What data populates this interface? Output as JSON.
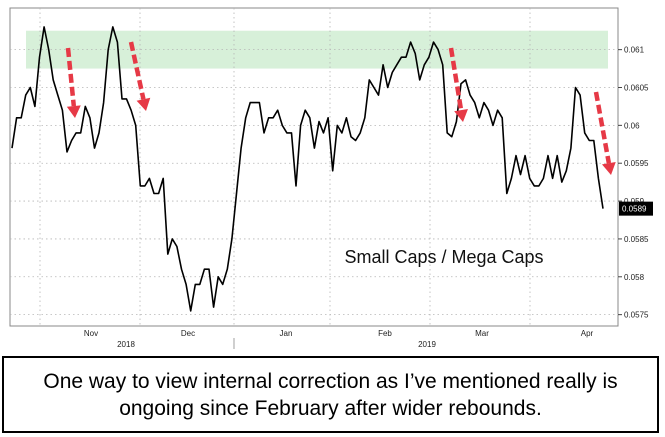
{
  "caption": "One way to view internal correction as I’ve mentioned really is ongoing since February after wider rebounds.",
  "chart_data": {
    "type": "line",
    "title": "Small Caps / Mega Caps",
    "xlabel": "",
    "ylabel": "",
    "series": [
      {
        "values": [
          0.0597,
          0.0601,
          0.0601,
          0.0604,
          0.0605,
          0.06025,
          0.0609,
          0.0613,
          0.061,
          0.0606,
          0.0604,
          0.0602,
          0.05965,
          0.0598,
          0.0599,
          0.0599,
          0.06025,
          0.0601,
          0.0597,
          0.0599,
          0.0603,
          0.061,
          0.0613,
          0.0611,
          0.06035,
          0.06035,
          0.0602,
          0.06,
          0.0592,
          0.0592,
          0.0593,
          0.0591,
          0.0591,
          0.0593,
          0.0583,
          0.0585,
          0.0584,
          0.0581,
          0.0579,
          0.05755,
          0.0579,
          0.0579,
          0.0581,
          0.0581,
          0.0576,
          0.058,
          0.0579,
          0.0581,
          0.0585,
          0.0591,
          0.0597,
          0.0601,
          0.0603,
          0.0603,
          0.0603,
          0.0599,
          0.0601,
          0.0601,
          0.0602,
          0.06,
          0.0599,
          0.0599,
          0.0592,
          0.06,
          0.0602,
          0.0601,
          0.0597,
          0.06005,
          0.0599,
          0.0601,
          0.0594,
          0.06,
          0.0599,
          0.0601,
          0.05985,
          0.0598,
          0.0599,
          0.0601,
          0.0606,
          0.0605,
          0.0604,
          0.0608,
          0.0605,
          0.0607,
          0.0608,
          0.0609,
          0.0609,
          0.0611,
          0.06095,
          0.0606,
          0.0608,
          0.0609,
          0.0611,
          0.061,
          0.0608,
          0.0599,
          0.05985,
          0.06005,
          0.06055,
          0.0606,
          0.0604,
          0.0603,
          0.0601,
          0.0603,
          0.0602,
          0.06,
          0.0602,
          0.0601,
          0.0591,
          0.0593,
          0.0596,
          0.05935,
          0.0596,
          0.0593,
          0.0592,
          0.0592,
          0.0593,
          0.0596,
          0.0593,
          0.0596,
          0.05925,
          0.0594,
          0.0597,
          0.0605,
          0.0604,
          0.0599,
          0.0598,
          0.0598,
          0.0593,
          0.0589
        ]
      }
    ],
    "x_ticks": [
      "Nov",
      "Dec",
      "Jan",
      "Feb",
      "Mar",
      "Apr"
    ],
    "year_labels": [
      "2018",
      "2019"
    ],
    "y_ticks": [
      "0.0575",
      "0.058",
      "0.0585",
      "0.059",
      "0.0595",
      "0.06",
      "0.0605",
      "0.061"
    ],
    "ylim": [
      0.05735,
      0.06155
    ],
    "last_value_label": "0.0589",
    "highlight_band": [
      0.06075,
      0.06125
    ],
    "grid": true,
    "colors": {
      "line": "#000000",
      "band": "#d7f0d9",
      "arrow": "#e63946",
      "last_box": "#000000"
    },
    "annotations": [
      "down-arrow",
      "down-arrow",
      "down-arrow",
      "down-arrow"
    ]
  }
}
